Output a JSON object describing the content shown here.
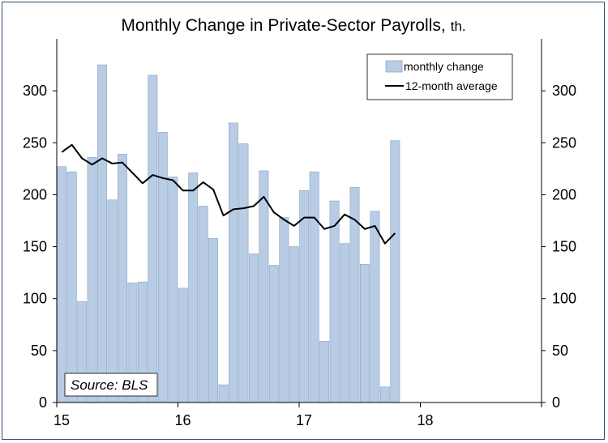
{
  "chart_data": {
    "type": "bar",
    "title": "Monthly Change in Private-Sector Payrolls,",
    "title_unit": "th.",
    "source": "Source: BLS",
    "xlabel": "",
    "ylabel": "",
    "ylim": [
      0,
      350
    ],
    "y_ticks": [
      0,
      50,
      100,
      150,
      200,
      250,
      300
    ],
    "x_ticks": [
      "15",
      "16",
      "17",
      "18"
    ],
    "x_range_years": [
      15,
      19
    ],
    "series": [
      {
        "name": "monthly change",
        "type": "bar",
        "color": "#b8cce4",
        "start_year": 15,
        "values": [
          227,
          222,
          97,
          236,
          325,
          195,
          239,
          115,
          116,
          315,
          260,
          217,
          110,
          221,
          189,
          158,
          17,
          269,
          249,
          143,
          223,
          132,
          178,
          150,
          204,
          222,
          59,
          194,
          153,
          207,
          133,
          184,
          15,
          252
        ]
      },
      {
        "name": "12-month average",
        "type": "line",
        "color": "#000000",
        "start_year": 15,
        "values": [
          241,
          248,
          235,
          229,
          235,
          230,
          231,
          221,
          211,
          219,
          216,
          214,
          204,
          204,
          212,
          205,
          180,
          186,
          187,
          189,
          198,
          183,
          176,
          170,
          178,
          178,
          167,
          170,
          181,
          176,
          167,
          170,
          153,
          163
        ]
      }
    ],
    "legend": {
      "position": "top-right",
      "entries": [
        "monthly change",
        "12-month average"
      ]
    },
    "colors": {
      "frame": "#2f4f6f",
      "axis": "#000000"
    }
  }
}
